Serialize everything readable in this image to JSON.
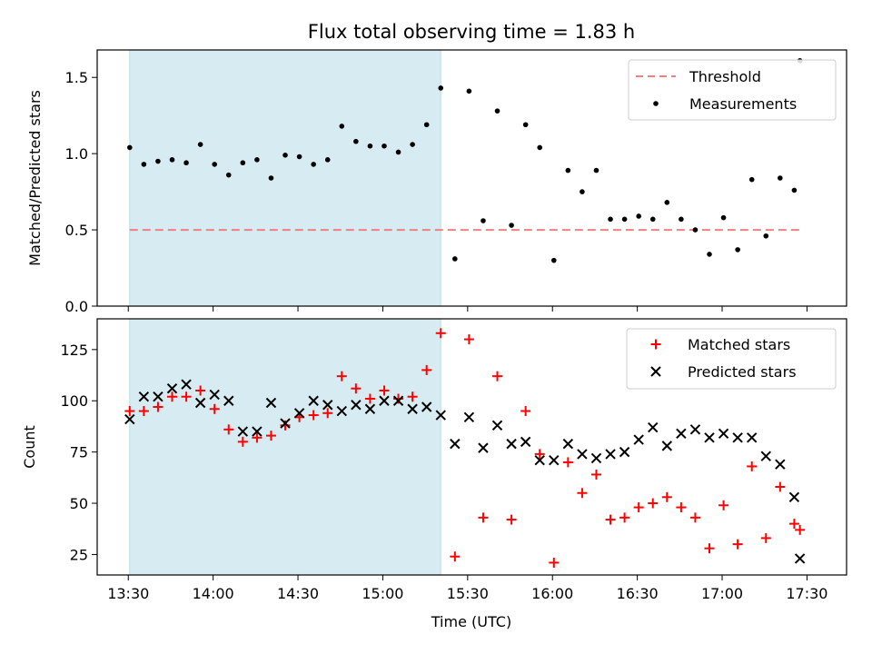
{
  "chart_data": {
    "title": "Flux total observing time = 1.83 h",
    "xlabel": "Time (UTC)",
    "x_ticks": [
      "13:30",
      "14:00",
      "14:30",
      "15:00",
      "15:30",
      "16:00",
      "16:30",
      "17:00",
      "17:30"
    ],
    "x_tick_minutes": [
      810,
      840,
      870,
      900,
      930,
      960,
      990,
      1020,
      1050
    ],
    "xlim_minutes": [
      799,
      1064
    ],
    "shaded_span_minutes": [
      810.5,
      920.5
    ],
    "shade_color": "#add8e6",
    "panels": [
      {
        "type": "scatter",
        "ylabel": "Matched/Predicted stars",
        "ylim": [
          0,
          1.68
        ],
        "y_ticks": [
          "0.0",
          "0.5",
          "1.0",
          "1.5"
        ],
        "y_tick_values": [
          0,
          0.5,
          1.0,
          1.5
        ],
        "threshold": {
          "name": "Threshold",
          "value": 0.5,
          "x_range": [
            810.5,
            1047.5
          ],
          "color": "#f08080"
        },
        "measurements": {
          "name": "Measurements",
          "color": "#000000",
          "x": [
            810.5,
            815.5,
            820.5,
            825.5,
            830.5,
            835.5,
            840.5,
            845.5,
            850.5,
            855.5,
            860.5,
            865.5,
            870.5,
            875.5,
            880.5,
            885.5,
            890.5,
            895.5,
            900.5,
            905.5,
            910.5,
            915.5,
            920.5,
            925.5,
            930.5,
            935.5,
            940.5,
            945.5,
            950.5,
            955.5,
            960.5,
            965.5,
            970.5,
            975.5,
            980.5,
            985.5,
            990.5,
            995.5,
            1000.5,
            1005.5,
            1010.5,
            1015.5,
            1020.5,
            1025.5,
            1030.5,
            1035.5,
            1040.5,
            1045.5
          ],
          "y": [
            1.04,
            0.93,
            0.95,
            0.96,
            0.94,
            1.06,
            0.93,
            0.86,
            0.94,
            0.96,
            0.84,
            0.99,
            0.98,
            0.93,
            0.96,
            1.18,
            1.08,
            1.05,
            1.05,
            1.01,
            1.06,
            1.19,
            1.43,
            0.31,
            1.41,
            0.56,
            1.28,
            0.53,
            1.19,
            1.04,
            0.3,
            0.89,
            0.75,
            0.89,
            0.57,
            0.57,
            0.59,
            0.57,
            0.68,
            0.57,
            0.5,
            0.34,
            0.58,
            0.37,
            0.83,
            0.46,
            0.84,
            0.76
          ]
        },
        "extra_points": {
          "x": [
            1047.5
          ],
          "y": [
            1.61
          ]
        }
      },
      {
        "type": "scatter",
        "ylabel": "Count",
        "ylim": [
          15,
          140
        ],
        "y_ticks": [
          "25",
          "50",
          "75",
          "100",
          "125"
        ],
        "y_tick_values": [
          25,
          50,
          75,
          100,
          125
        ],
        "series": [
          {
            "name": "Matched stars",
            "marker": "plus",
            "color": "#ff0000",
            "x": [
              810.5,
              815.5,
              820.5,
              825.5,
              830.5,
              835.5,
              840.5,
              845.5,
              850.5,
              855.5,
              860.5,
              865.5,
              870.5,
              875.5,
              880.5,
              885.5,
              890.5,
              895.5,
              900.5,
              905.5,
              910.5,
              915.5,
              920.5,
              925.5,
              930.5,
              935.5,
              940.5,
              945.5,
              950.5,
              955.5,
              960.5,
              965.5,
              970.5,
              975.5,
              980.5,
              985.5,
              990.5,
              995.5,
              1000.5,
              1005.5,
              1010.5,
              1015.5,
              1020.5,
              1025.5,
              1030.5,
              1035.5,
              1040.5,
              1045.5
            ],
            "values": [
              95,
              95,
              97,
              102,
              102,
              105,
              96,
              86,
              80,
              82,
              83,
              88,
              92,
              93,
              94,
              112,
              106,
              101,
              105,
              101,
              102,
              115,
              133,
              24,
              130,
              43,
              112,
              42,
              95,
              74,
              21,
              70,
              55,
              64,
              42,
              43,
              48,
              50,
              53,
              48,
              43,
              28,
              49,
              30,
              68,
              33,
              58,
              40
            ]
          },
          {
            "name": "Predicted stars",
            "marker": "x",
            "color": "#000000",
            "x": [
              810.5,
              815.5,
              820.5,
              825.5,
              830.5,
              835.5,
              840.5,
              845.5,
              850.5,
              855.5,
              860.5,
              865.5,
              870.5,
              875.5,
              880.5,
              885.5,
              890.5,
              895.5,
              900.5,
              905.5,
              910.5,
              915.5,
              920.5,
              925.5,
              930.5,
              935.5,
              940.5,
              945.5,
              950.5,
              955.5,
              960.5,
              965.5,
              970.5,
              975.5,
              980.5,
              985.5,
              990.5,
              995.5,
              1000.5,
              1005.5,
              1010.5,
              1015.5,
              1020.5,
              1025.5,
              1030.5,
              1035.5,
              1040.5,
              1045.5
            ],
            "values": [
              91,
              102,
              102,
              106,
              108,
              99,
              103,
              100,
              85,
              85,
              99,
              89,
              94,
              100,
              98,
              95,
              98,
              96,
              100,
              100,
              96,
              97,
              93,
              79,
              92,
              77,
              88,
              79,
              80,
              71,
              71,
              79,
              74,
              72,
              74,
              75,
              81,
              87,
              78,
              84,
              86,
              82,
              84,
              82,
              82,
              73,
              69,
              53
            ]
          }
        ],
        "extra_points": [
          {
            "series": "Matched stars",
            "x": [
              1047.5
            ],
            "y": [
              37
            ]
          },
          {
            "series": "Predicted stars",
            "x": [
              1047.5
            ],
            "y": [
              23
            ]
          }
        ]
      }
    ]
  }
}
